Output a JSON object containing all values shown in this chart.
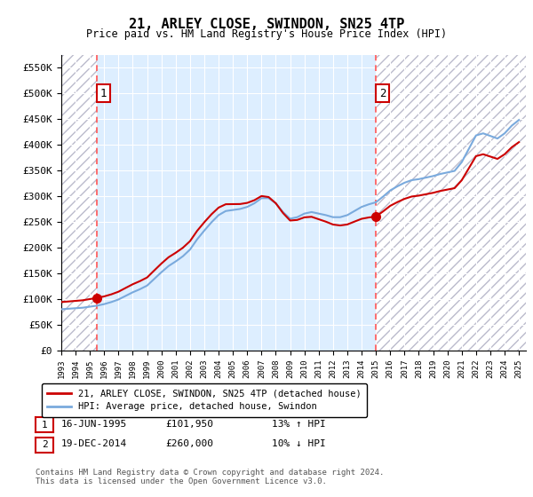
{
  "title": "21, ARLEY CLOSE, SWINDON, SN25 4TP",
  "subtitle": "Price paid vs. HM Land Registry's House Price Index (HPI)",
  "ylim": [
    0,
    575000
  ],
  "yticks": [
    0,
    50000,
    100000,
    150000,
    200000,
    250000,
    300000,
    350000,
    400000,
    450000,
    500000,
    550000
  ],
  "ytick_labels": [
    "£0",
    "£50K",
    "£100K",
    "£150K",
    "£200K",
    "£250K",
    "£300K",
    "£350K",
    "£400K",
    "£450K",
    "£500K",
    "£550K"
  ],
  "bg_color": "#ddeeff",
  "sale1_date": 1995.46,
  "sale1_price": 101950,
  "sale2_date": 2014.96,
  "sale2_price": 260000,
  "legend_red": "21, ARLEY CLOSE, SWINDON, SN25 4TP (detached house)",
  "legend_blue": "HPI: Average price, detached house, Swindon",
  "info1_date": "16-JUN-1995",
  "info1_price": "£101,950",
  "info1_hpi": "13% ↑ HPI",
  "info2_date": "19-DEC-2014",
  "info2_price": "£260,000",
  "info2_hpi": "10% ↓ HPI",
  "footer": "Contains HM Land Registry data © Crown copyright and database right 2024.\nThis data is licensed under the Open Government Licence v3.0.",
  "red_line_color": "#cc0000",
  "blue_line_color": "#7aaadd",
  "dot_color": "#cc0000",
  "vline_color": "#ff5555"
}
